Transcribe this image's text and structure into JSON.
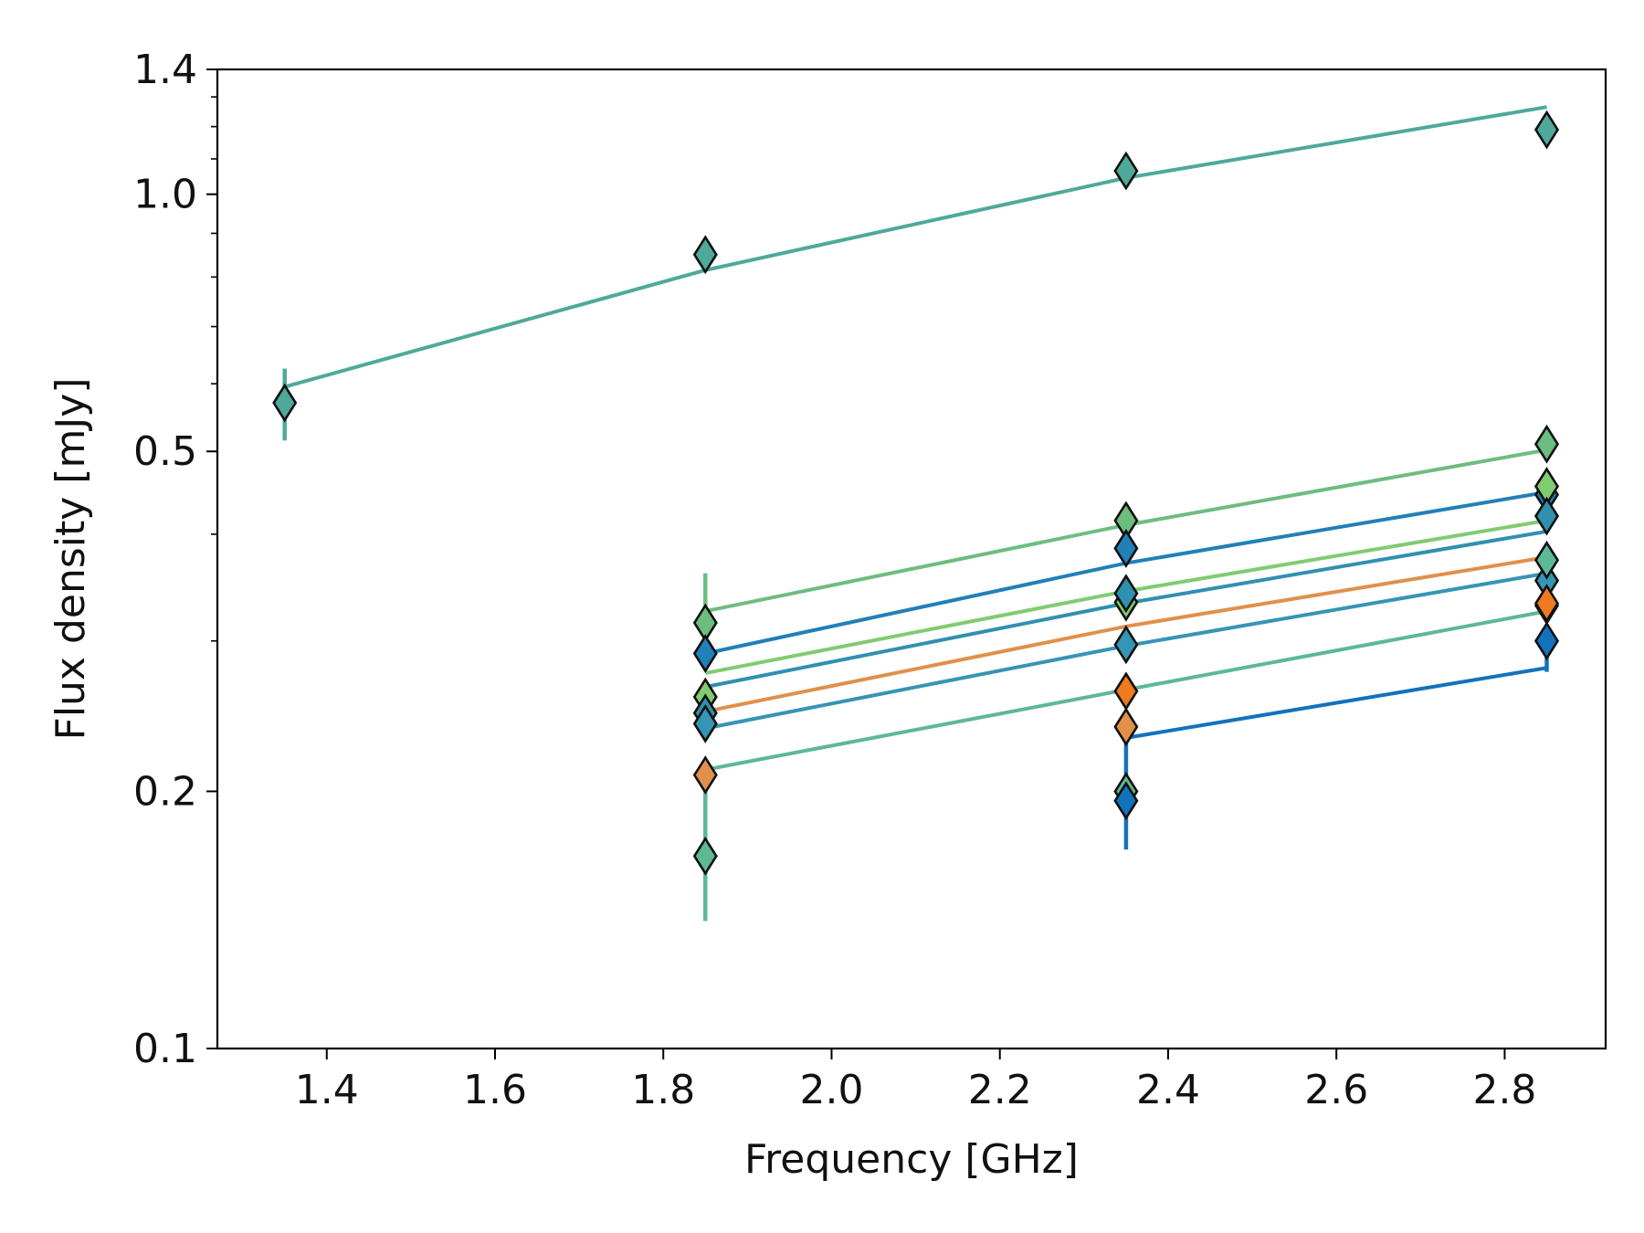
{
  "chart_data": {
    "type": "scatter",
    "title": "",
    "xlabel": "Frequency [GHz]",
    "ylabel": "Flux density [mJy]",
    "yscale": "log",
    "xlim": [
      1.27,
      2.92
    ],
    "ylim": [
      0.1,
      1.4
    ],
    "grid": false,
    "x_ticks": [
      1.4,
      1.6,
      1.8,
      2.0,
      2.2,
      2.4,
      2.6,
      2.8
    ],
    "x_tick_labels": [
      "1.4",
      "1.6",
      "1.8",
      "2.0",
      "2.2",
      "2.4",
      "2.6",
      "2.8"
    ],
    "y_ticks": [
      0.1,
      0.2,
      0.5,
      1.0,
      1.4
    ],
    "y_tick_labels": [
      "0.1",
      "0.2",
      "0.5",
      "1.0",
      "1.4"
    ],
    "y_minor_ticks": [
      0.3,
      0.4,
      0.6,
      0.7,
      0.8,
      0.9,
      1.1,
      1.2,
      1.3
    ],
    "marker": "diamond",
    "series": [
      {
        "color": "#4fa99b",
        "fit_x": [
          1.35,
          1.85,
          2.35,
          2.85
        ],
        "fit_y": [
          0.595,
          0.815,
          1.045,
          1.265
        ],
        "points": [
          {
            "x": 1.35,
            "y": 0.57,
            "err": [
              0.515,
              0.625
            ]
          },
          {
            "x": 1.85,
            "y": 0.85
          },
          {
            "x": 2.35,
            "y": 1.065
          },
          {
            "x": 2.85,
            "y": 1.19
          }
        ]
      },
      {
        "color": "#6dbd7f",
        "fit_x": [
          1.85,
          2.35,
          2.85
        ],
        "fit_y": [
          0.325,
          0.41,
          0.502
        ],
        "points": [
          {
            "x": 1.85,
            "y": 0.315,
            "err": [
              0.277,
              0.36
            ]
          },
          {
            "x": 2.35,
            "y": 0.415
          },
          {
            "x": 2.85,
            "y": 0.51
          }
        ]
      },
      {
        "color": "#2080b8",
        "fit_x": [
          1.85,
          2.35,
          2.85
        ],
        "fit_y": [
          0.29,
          0.37,
          0.448
        ],
        "points": [
          {
            "x": 1.85,
            "y": 0.29
          },
          {
            "x": 2.35,
            "y": 0.385
          },
          {
            "x": 2.85,
            "y": 0.445
          }
        ]
      },
      {
        "color": "#80cc70",
        "fit_x": [
          1.85,
          2.35,
          2.85
        ],
        "fit_y": [
          0.275,
          0.343,
          0.415
        ],
        "points": [
          {
            "x": 1.85,
            "y": 0.258
          },
          {
            "x": 2.35,
            "y": 0.333
          },
          {
            "x": 2.85,
            "y": 0.455
          }
        ]
      },
      {
        "color": "#3090b0",
        "fit_x": [
          1.85,
          2.35,
          2.85
        ],
        "fit_y": [
          0.265,
          0.332,
          0.403
        ],
        "points": [
          {
            "x": 1.85,
            "y": 0.247
          },
          {
            "x": 2.35,
            "y": 0.341
          },
          {
            "x": 2.85,
            "y": 0.42
          }
        ]
      },
      {
        "color": "#e0904a",
        "fit_x": [
          1.85,
          2.35,
          2.85
        ],
        "fit_y": [
          0.248,
          0.312,
          0.376
        ],
        "points": [
          {
            "x": 1.85,
            "y": 0.209
          },
          {
            "x": 2.35,
            "y": 0.238
          },
          {
            "x": 2.85,
            "y": 0.33
          }
        ]
      },
      {
        "color": "#3595b5",
        "fit_x": [
          1.85,
          2.35,
          2.85
        ],
        "fit_y": [
          0.237,
          0.296,
          0.36
        ],
        "points": [
          {
            "x": 1.85,
            "y": 0.24
          },
          {
            "x": 2.35,
            "y": 0.297
          },
          {
            "x": 2.85,
            "y": 0.353
          }
        ]
      },
      {
        "color": "#5db895",
        "fit_x": [
          1.85,
          2.35,
          2.85
        ],
        "fit_y": [
          0.212,
          0.263,
          0.325
        ],
        "points": [
          {
            "x": 1.85,
            "y": 0.168,
            "err": [
              0.141,
              0.2
            ]
          },
          {
            "x": 2.35,
            "y": 0.2
          },
          {
            "x": 2.85,
            "y": 0.373
          }
        ]
      },
      {
        "color": "#f07a20",
        "fit_x": [],
        "fit_y": [],
        "points": [
          {
            "x": 2.35,
            "y": 0.262
          },
          {
            "x": 2.85,
            "y": 0.332
          }
        ]
      },
      {
        "color": "#1372bc",
        "fit_x": [
          2.35,
          2.85
        ],
        "fit_y": [
          0.231,
          0.279
        ],
        "points": [
          {
            "x": 2.35,
            "y": 0.195,
            "err": [
              0.171,
              0.231
            ]
          },
          {
            "x": 2.85,
            "y": 0.3,
            "err": [
              0.276,
              0.31
            ]
          }
        ]
      }
    ]
  }
}
